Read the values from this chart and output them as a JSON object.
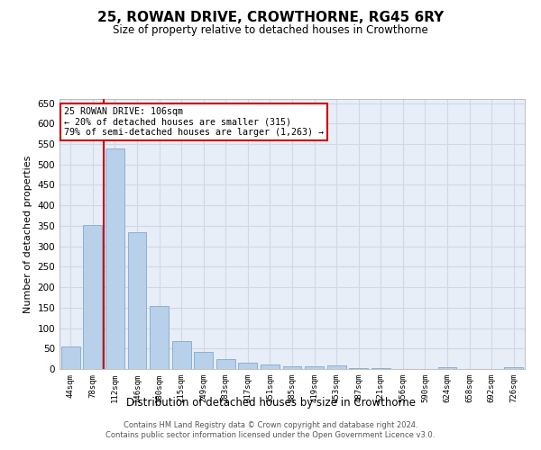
{
  "title_line1": "25, ROWAN DRIVE, CROWTHORNE, RG45 6RY",
  "title_line2": "Size of property relative to detached houses in Crowthorne",
  "xlabel": "Distribution of detached houses by size in Crowthorne",
  "ylabel": "Number of detached properties",
  "categories": [
    "44sqm",
    "78sqm",
    "112sqm",
    "146sqm",
    "180sqm",
    "215sqm",
    "249sqm",
    "283sqm",
    "317sqm",
    "351sqm",
    "385sqm",
    "419sqm",
    "453sqm",
    "487sqm",
    "521sqm",
    "556sqm",
    "590sqm",
    "624sqm",
    "658sqm",
    "692sqm",
    "726sqm"
  ],
  "values": [
    55,
    352,
    540,
    335,
    155,
    68,
    41,
    24,
    16,
    10,
    6,
    7,
    8,
    3,
    2,
    1,
    1,
    5,
    1,
    1,
    5
  ],
  "bar_color": "#b8d0ea",
  "bar_edge_color": "#8ab0d4",
  "background_color": "#e8eef7",
  "grid_color": "#d0d8e8",
  "property_line_x": 1.5,
  "annotation_text_line1": "25 ROWAN DRIVE: 106sqm",
  "annotation_text_line2": "← 20% of detached houses are smaller (315)",
  "annotation_text_line3": "79% of semi-detached houses are larger (1,263) →",
  "annotation_box_color": "#cc0000",
  "ylim": [
    0,
    660
  ],
  "yticks": [
    0,
    50,
    100,
    150,
    200,
    250,
    300,
    350,
    400,
    450,
    500,
    550,
    600,
    650
  ],
  "footer_line1": "Contains HM Land Registry data © Crown copyright and database right 2024.",
  "footer_line2": "Contains public sector information licensed under the Open Government Licence v3.0."
}
